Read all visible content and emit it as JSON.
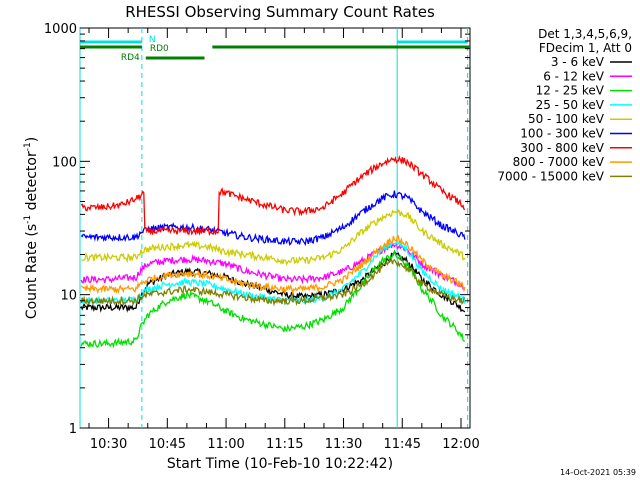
{
  "chart_data": {
    "type": "line",
    "title": "RHESSI Observing Summary Count Rates",
    "xlabel": "Start Time (10-Feb-10 10:22:42)",
    "ylabel_pre": "Count Rate (s",
    "ylabel_sup1": "-1",
    "ylabel_mid": " detector",
    "ylabel_sup2": "-1",
    "ylabel_post": ")",
    "x_range_min": [
      22.7,
      122.3
    ],
    "y_range": [
      1,
      1000
    ],
    "y_scale": "log",
    "x_ticks": [
      {
        "min": 30,
        "label": "10:30"
      },
      {
        "min": 45,
        "label": "10:45"
      },
      {
        "min": 60,
        "label": "11:00"
      },
      {
        "min": 75,
        "label": "11:15"
      },
      {
        "min": 90,
        "label": "11:30"
      },
      {
        "min": 105,
        "label": "11:45"
      },
      {
        "min": 120,
        "label": "12:00"
      }
    ],
    "y_ticks": [
      {
        "value": 1,
        "label": "1"
      },
      {
        "value": 10,
        "label": "10"
      },
      {
        "value": 100,
        "label": "100"
      },
      {
        "value": 1000,
        "label": "1000"
      }
    ],
    "legend_header": [
      "Det 1,3,4,5,6,9,",
      "FDecim 1, Att 0"
    ],
    "series": [
      {
        "name": "3 - 6 keV",
        "color": "#000000",
        "x": [
          23,
          30,
          37,
          38,
          40,
          45,
          50,
          55,
          60,
          65,
          70,
          75,
          80,
          85,
          90,
          95,
          100,
          103,
          106,
          110,
          115,
          120,
          121
        ],
        "y": [
          8,
          8,
          8,
          9.5,
          12,
          14,
          15,
          14.5,
          13.5,
          12,
          11,
          10,
          9.6,
          10,
          11,
          13,
          17,
          20,
          18,
          13,
          10,
          8,
          7.5
        ]
      },
      {
        "name": "6 - 12 keV",
        "color": "#ff00ff",
        "x": [
          23,
          30,
          37,
          38,
          40,
          45,
          50,
          55,
          60,
          65,
          70,
          75,
          80,
          85,
          90,
          95,
          100,
          103,
          106,
          110,
          115,
          120,
          121
        ],
        "y": [
          13,
          13,
          13.5,
          15,
          17,
          18,
          18.5,
          18,
          17,
          15,
          14,
          13,
          13,
          13.5,
          15,
          18,
          22,
          24,
          22,
          17,
          14,
          12,
          11.5
        ]
      },
      {
        "name": "12 - 25 keV",
        "color": "#00e000",
        "x": [
          23,
          30,
          37,
          38,
          40,
          45,
          50,
          55,
          60,
          65,
          70,
          75,
          80,
          85,
          90,
          95,
          100,
          103,
          106,
          110,
          115,
          120,
          121
        ],
        "y": [
          4.3,
          4.3,
          4.5,
          5.5,
          7,
          9,
          10,
          9,
          7.5,
          6.5,
          6,
          5.5,
          5.8,
          6.5,
          8,
          12,
          18,
          20,
          17,
          11,
          7,
          5,
          4.5
        ]
      },
      {
        "name": "25 - 50 keV",
        "color": "#00ffff",
        "x": [
          23,
          30,
          37,
          38,
          40,
          45,
          50,
          55,
          60,
          65,
          70,
          75,
          80,
          85,
          90,
          95,
          100,
          103,
          106,
          110,
          115,
          120,
          121
        ],
        "y": [
          9,
          9,
          9.2,
          10,
          11,
          12,
          12.5,
          12,
          11,
          10,
          9.5,
          9,
          9,
          9.5,
          11,
          15,
          22,
          25,
          22,
          15,
          11,
          9.5,
          9
        ]
      },
      {
        "name": "50 - 100 keV",
        "color": "#cccc00",
        "x": [
          23,
          30,
          37,
          38,
          40,
          45,
          50,
          55,
          60,
          65,
          70,
          75,
          80,
          85,
          90,
          95,
          100,
          103,
          106,
          110,
          115,
          120,
          121
        ],
        "y": [
          19,
          19,
          19,
          21,
          22,
          23,
          23.5,
          23,
          21,
          20,
          19,
          18,
          18,
          19,
          22,
          30,
          38,
          42,
          40,
          30,
          24,
          20,
          19
        ]
      },
      {
        "name": "100 - 300 keV",
        "color": "#0000ff",
        "x": [
          23,
          30,
          37,
          38,
          40,
          45,
          50,
          55,
          60,
          65,
          70,
          75,
          80,
          85,
          90,
          95,
          100,
          103,
          106,
          110,
          115,
          120,
          121
        ],
        "y": [
          27,
          27,
          27,
          29,
          31,
          32,
          32,
          31,
          29,
          27,
          26,
          25,
          25,
          27,
          32,
          42,
          53,
          57,
          54,
          42,
          33,
          28,
          27
        ]
      },
      {
        "name": "300 - 800 keV",
        "color": "#ff0000",
        "x": [
          23,
          28,
          33,
          37,
          39,
          39.01,
          45,
          50,
          55,
          58,
          58.01,
          60,
          65,
          70,
          75,
          80,
          85,
          90,
          95,
          100,
          103,
          106,
          110,
          115,
          120,
          121
        ],
        "y": [
          45,
          45,
          47,
          52,
          58,
          30,
          30,
          30,
          30,
          30,
          60,
          58,
          52,
          47,
          43,
          42,
          45,
          58,
          78,
          97,
          105,
          100,
          80,
          60,
          48,
          45
        ]
      },
      {
        "name": "800 - 7000 keV",
        "color": "#ff9900",
        "x": [
          23,
          30,
          37,
          38,
          40,
          45,
          50,
          55,
          60,
          65,
          70,
          75,
          80,
          85,
          90,
          95,
          100,
          103,
          106,
          110,
          115,
          120,
          121
        ],
        "y": [
          11,
          11,
          11,
          12,
          13,
          14,
          14.5,
          14,
          13,
          12,
          11.5,
          11,
          11,
          11.5,
          13,
          17,
          23,
          27,
          24,
          18,
          14,
          12,
          11
        ]
      },
      {
        "name": "7000 - 15000 keV",
        "color": "#808000",
        "x": [
          23,
          30,
          37,
          38,
          40,
          45,
          50,
          55,
          60,
          65,
          70,
          75,
          80,
          85,
          90,
          95,
          100,
          103,
          106,
          110,
          115,
          120,
          121
        ],
        "y": [
          9,
          9,
          9,
          9.5,
          10,
          10.5,
          11,
          10.5,
          10,
          9.5,
          9,
          9,
          9,
          9.5,
          10,
          12,
          16,
          18,
          16,
          12,
          10,
          9,
          9
        ]
      }
    ],
    "vertical_lines_min": [
      {
        "min": 22.7,
        "style": "solid",
        "color": "#00e0e0"
      },
      {
        "min": 38.5,
        "style": "dashed",
        "color": "#00e0e0"
      },
      {
        "min": 103.7,
        "style": "solid",
        "color": "#00e0e0"
      },
      {
        "min": 121.7,
        "style": "dashed",
        "color": "#00e0e0"
      }
    ],
    "flag_bars": [
      {
        "label": "N",
        "color": "#00e0e0",
        "level": 1,
        "segments": [
          [
            22.7,
            38.5
          ],
          [
            103.7,
            121.7
          ]
        ]
      },
      {
        "label": "RD0",
        "color": "#008000",
        "level": 2,
        "segments": [
          [
            22.7,
            38.5
          ],
          [
            56.5,
            122.3
          ]
        ]
      },
      {
        "label": "RD4",
        "color": "#008000",
        "level": 3,
        "segments": [
          [
            39.5,
            54.5
          ]
        ]
      }
    ],
    "legend_position": "right"
  },
  "timestamp": "14-Oct-2021 05:39"
}
